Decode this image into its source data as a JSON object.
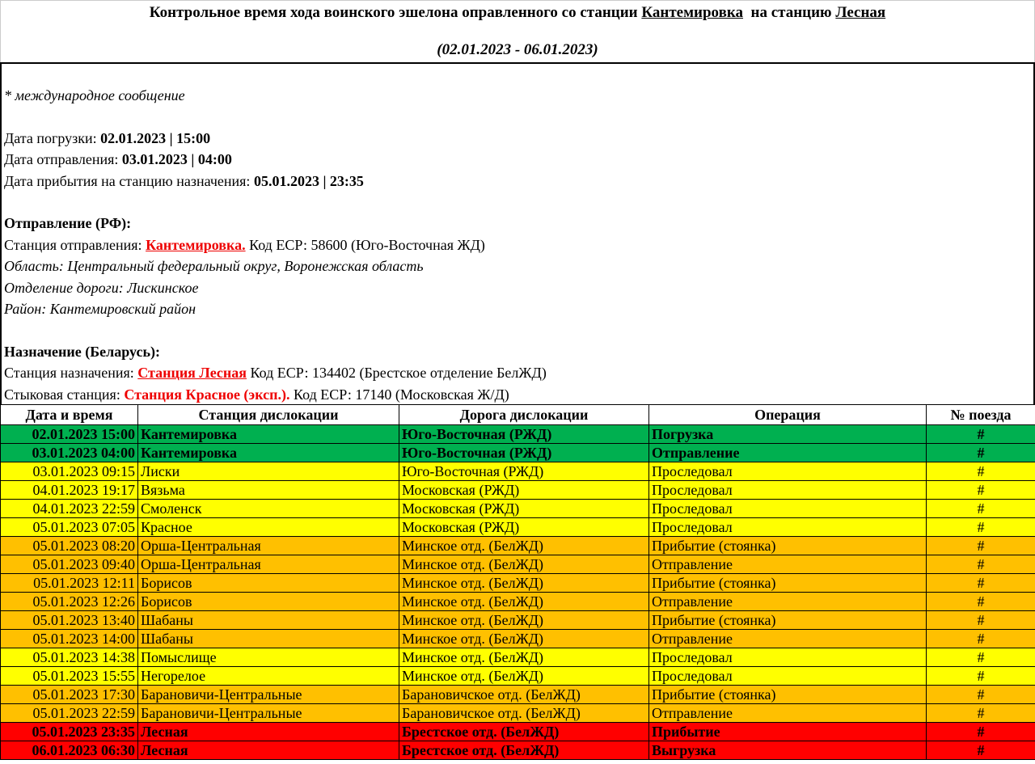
{
  "header": {
    "title_prefix": "Контрольное время хода воинского эшелона оправленного со станции",
    "from": "Кантемировка",
    "mid": "на станцию",
    "to": "Лесная",
    "period": "(02.01.2023 - 06.01.2023)"
  },
  "info": {
    "note": "* международное сообщение",
    "load_label": "Дата погрузки: ",
    "load_value": "02.01.2023 |  15:00",
    "dep_label": "Дата отправления: ",
    "dep_value": "03.01.2023 | 04:00",
    "arr_label": "Дата прибытия на станцию назначения: ",
    "arr_value": "05.01.2023 | 23:35",
    "departure_heading": "Отправление (РФ):",
    "dep_station_label": "Станция отправления: ",
    "dep_station": "Кантемировка.",
    "dep_station_code": " Код ЕСР: 58600 (Юго-Восточная ЖД)",
    "region": "Область: Центральный федеральный округ, Воронежская область",
    "division": "Отделение дороги: Лискинское",
    "district": "Район: Кантемировский район",
    "dest_heading": "Назначение (Беларусь):",
    "dest_station_label": "Станция назначения: ",
    "dest_station": "Станция Лесная",
    ".": ".",
    "dest_station_code": " Код ЕСР: 134402 (Брестское отделение БелЖД)",
    "junction_label": "Стыковая станция: ",
    "junction_station": "Станция Красное (эксп.).",
    "junction_code": " Код ЕСР: 17140 (Московская Ж/Д)"
  },
  "colors": {
    "green": "#00B050",
    "yellow": "#FFFF00",
    "orange": "#FFC000",
    "red": "#FF0000"
  },
  "table": {
    "columns": [
      "Дата и время",
      "Станция дислокации",
      "Дорога дислокации",
      "Операция",
      "№ поезда"
    ],
    "rows": [
      {
        "dt": "02.01.2023 15:00",
        "station": "Кантемировка",
        "road": "Юго-Восточная (РЖД)",
        "op": "Погрузка",
        "num": "#",
        "color": "green",
        "bold": true
      },
      {
        "dt": "03.01.2023 04:00",
        "station": "Кантемировка",
        "road": "Юго-Восточная (РЖД)",
        "op": "Отправление",
        "num": "#",
        "color": "green",
        "bold": true
      },
      {
        "dt": "03.01.2023 09:15",
        "station": "Лиски",
        "road": "Юго-Восточная (РЖД)",
        "op": "Проследовал",
        "num": "#",
        "color": "yellow"
      },
      {
        "dt": "04.01.2023 19:17",
        "station": "Вязьма",
        "road": "Московская (РЖД)",
        "op": "Проследовал",
        "num": "#",
        "color": "yellow"
      },
      {
        "dt": "04.01.2023 22:59",
        "station": "Смоленск",
        "road": "Московская (РЖД)",
        "op": "Проследовал",
        "num": "#",
        "color": "yellow"
      },
      {
        "dt": "05.01.2023 07:05",
        "station": "Красное",
        "road": "Московская (РЖД)",
        "op": "Проследовал",
        "num": "#",
        "color": "yellow"
      },
      {
        "dt": "05.01.2023 08:20",
        "station": "Орша-Центральная",
        "road": "Минское отд. (БелЖД)",
        "op": "Прибытие (стоянка)",
        "num": "#",
        "color": "orange"
      },
      {
        "dt": "05.01.2023 09:40",
        "station": "Орша-Центральная",
        "road": "Минское отд. (БелЖД)",
        "op": "Отправление",
        "num": "#",
        "color": "orange"
      },
      {
        "dt": "05.01.2023 12:11",
        "station": "Борисов",
        "road": "Минское отд. (БелЖД)",
        "op": "Прибытие (стоянка)",
        "num": "#",
        "color": "orange"
      },
      {
        "dt": "05.01.2023 12:26",
        "station": "Борисов",
        "road": "Минское отд. (БелЖД)",
        "op": "Отправление",
        "num": "#",
        "color": "orange"
      },
      {
        "dt": "05.01.2023 13:40",
        "station": "Шабаны",
        "road": "Минское отд. (БелЖД)",
        "op": "Прибытие (стоянка)",
        "num": "#",
        "color": "orange"
      },
      {
        "dt": "05.01.2023 14:00",
        "station": "Шабаны",
        "road": "Минское отд. (БелЖД)",
        "op": "Отправление",
        "num": "#",
        "color": "orange"
      },
      {
        "dt": "05.01.2023 14:38",
        "station": "Помыслище",
        "road": "Минское отд. (БелЖД)",
        "op": "Проследовал",
        "num": "#",
        "color": "yellow"
      },
      {
        "dt": "05.01.2023 15:55",
        "station": "Негорелое",
        "road": "Минское отд. (БелЖД)",
        "op": "Проследовал",
        "num": "#",
        "color": "yellow"
      },
      {
        "dt": "05.01.2023 17:30",
        "station": "Барановичи-Центральные",
        "road": "Барановичское отд. (БелЖД)",
        "op": "Прибытие (стоянка)",
        "num": "#",
        "color": "orange"
      },
      {
        "dt": "05.01.2023 22:59",
        "station": "Барановичи-Центральные",
        "road": "Барановичское отд. (БелЖД)",
        "op": "Отправление",
        "num": "#",
        "color": "orange"
      },
      {
        "dt": "05.01.2023 23:35",
        "station": "Лесная",
        "road": "Брестское отд. (БелЖД)",
        "op": "Прибытие",
        "num": "#",
        "color": "red",
        "bold": true
      },
      {
        "dt": "06.01.2023 06:30",
        "station": "Лесная",
        "road": "Брестское отд. (БелЖД)",
        "op": "Выгрузка",
        "num": "#",
        "color": "red",
        "bold": true
      }
    ]
  }
}
